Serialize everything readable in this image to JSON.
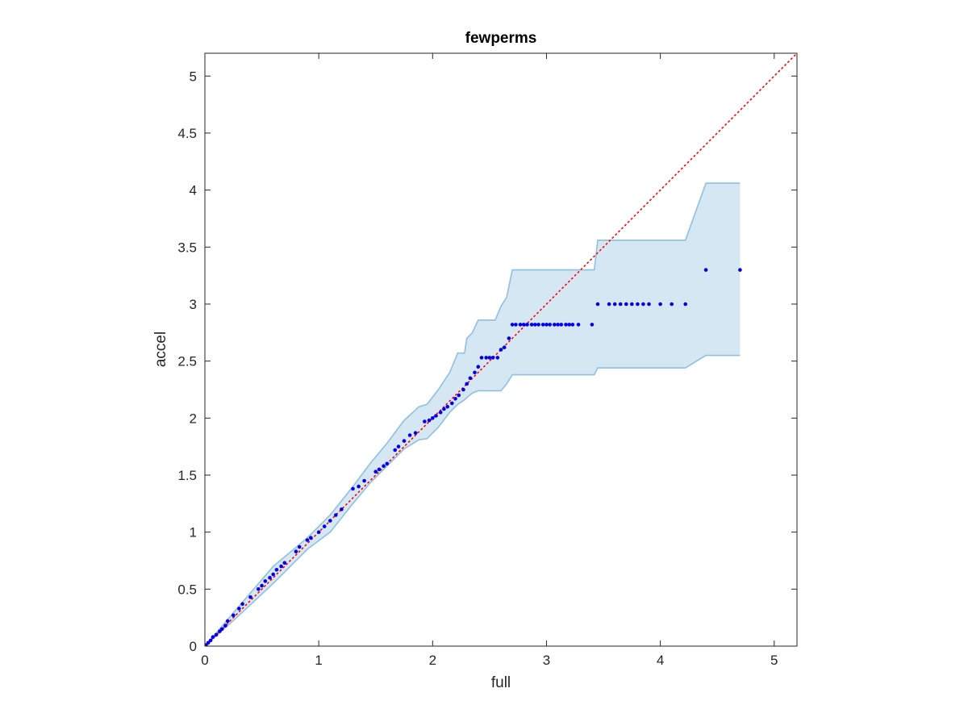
{
  "chart_data": {
    "type": "scatter",
    "title": "fewperms",
    "xlabel": "full",
    "ylabel": "accel",
    "xlim": [
      0,
      5.2
    ],
    "ylim": [
      0,
      5.2
    ],
    "xticks": [
      0,
      1,
      2,
      3,
      4,
      5
    ],
    "yticks": [
      0,
      0.5,
      1,
      1.5,
      2,
      2.5,
      3,
      3.5,
      4,
      4.5,
      5
    ],
    "xtick_labels": [
      "0",
      "1",
      "2",
      "3",
      "4",
      "5"
    ],
    "ytick_labels": [
      "0",
      "0.5",
      "1",
      "1.5",
      "2",
      "2.5",
      "3",
      "3.5",
      "4",
      "4.5",
      "5"
    ],
    "grid": false,
    "colors": {
      "points": "#0000ee",
      "reference_line": "#ff0000",
      "band_fill": "#d6e7f4",
      "band_edge": "#8fc0e0",
      "axes": "#262626"
    },
    "reference_line": {
      "style": "dotted",
      "x": [
        0,
        5.2
      ],
      "y": [
        0,
        5.2
      ]
    },
    "band": {
      "x": [
        0,
        0.3,
        0.6,
        0.9,
        1.1,
        1.3,
        1.45,
        1.6,
        1.75,
        1.88,
        1.95,
        2.05,
        2.15,
        2.22,
        2.28,
        2.3,
        2.35,
        2.4,
        2.55,
        2.6,
        2.65,
        2.7,
        3.42,
        3.45,
        4.22,
        4.4,
        4.7
      ],
      "upper": [
        0,
        0.35,
        0.7,
        0.95,
        1.15,
        1.4,
        1.6,
        1.78,
        1.98,
        2.1,
        2.12,
        2.25,
        2.4,
        2.57,
        2.57,
        2.7,
        2.75,
        2.86,
        2.86,
        2.98,
        3.06,
        3.3,
        3.3,
        3.56,
        3.56,
        4.06,
        4.06
      ],
      "lower": [
        0,
        0.27,
        0.55,
        0.85,
        1.0,
        1.25,
        1.43,
        1.58,
        1.73,
        1.81,
        1.82,
        1.92,
        2.05,
        2.12,
        2.16,
        2.18,
        2.22,
        2.24,
        2.24,
        2.24,
        2.3,
        2.38,
        2.38,
        2.44,
        2.44,
        2.55,
        2.55
      ]
    },
    "series": [
      {
        "x": [
          0.01,
          0.03,
          0.05,
          0.07,
          0.1,
          0.13,
          0.15,
          0.18,
          0.2,
          0.25,
          0.3,
          0.33,
          0.4,
          0.47,
          0.5,
          0.53,
          0.57,
          0.6,
          0.63,
          0.67,
          0.7,
          0.8,
          0.83,
          0.9,
          0.93,
          1.0,
          1.05,
          1.1,
          1.15,
          1.2,
          1.3,
          1.35,
          1.4,
          1.5,
          1.53,
          1.57,
          1.6,
          1.67,
          1.7,
          1.75,
          1.8,
          1.85,
          1.93,
          1.97,
          2.0,
          2.03,
          2.07,
          2.1,
          2.13,
          2.17,
          2.2,
          2.23,
          2.27,
          2.3,
          2.33,
          2.37,
          2.4,
          2.43,
          2.47,
          2.5,
          2.53,
          2.57,
          2.6,
          2.63,
          2.67,
          2.7,
          2.73,
          2.77,
          2.8,
          2.83,
          2.87,
          2.9,
          2.93,
          2.97,
          3.0,
          3.03,
          3.07,
          3.1,
          3.13,
          3.17,
          3.2,
          3.23,
          3.28,
          3.4,
          3.45,
          3.55,
          3.6,
          3.65,
          3.7,
          3.75,
          3.8,
          3.85,
          3.9,
          4.0,
          4.1,
          4.22,
          4.4,
          4.7
        ],
        "y": [
          0.01,
          0.03,
          0.05,
          0.08,
          0.1,
          0.13,
          0.15,
          0.18,
          0.22,
          0.27,
          0.33,
          0.37,
          0.43,
          0.5,
          0.53,
          0.57,
          0.6,
          0.63,
          0.67,
          0.7,
          0.73,
          0.83,
          0.87,
          0.93,
          0.95,
          1.0,
          1.05,
          1.1,
          1.15,
          1.2,
          1.38,
          1.4,
          1.45,
          1.53,
          1.55,
          1.58,
          1.6,
          1.72,
          1.75,
          1.8,
          1.85,
          1.87,
          1.97,
          1.98,
          2.0,
          2.02,
          2.05,
          2.08,
          2.1,
          2.13,
          2.17,
          2.2,
          2.25,
          2.3,
          2.35,
          2.4,
          2.45,
          2.53,
          2.53,
          2.53,
          2.53,
          2.53,
          2.6,
          2.62,
          2.7,
          2.82,
          2.82,
          2.82,
          2.82,
          2.82,
          2.82,
          2.82,
          2.82,
          2.82,
          2.82,
          2.82,
          2.82,
          2.82,
          2.82,
          2.82,
          2.82,
          2.82,
          2.82,
          2.82,
          3.0,
          3.0,
          3.0,
          3.0,
          3.0,
          3.0,
          3.0,
          3.0,
          3.0,
          3.0,
          3.0,
          3.0,
          3.3,
          3.3
        ]
      }
    ]
  }
}
